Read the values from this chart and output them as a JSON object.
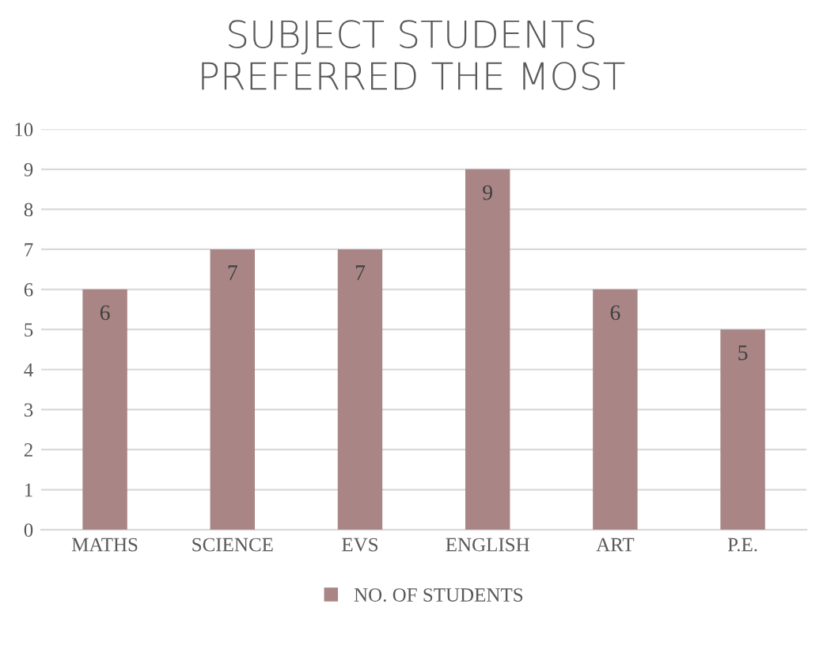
{
  "chart_data": {
    "type": "bar",
    "title": "SUBJECT STUDENTS\nPREFERRED THE MOST",
    "categories": [
      "MATHS",
      "SCIENCE",
      "EVS",
      "ENGLISH",
      "ART",
      "P.E."
    ],
    "series": [
      {
        "name": "NO. OF STUDENTS",
        "color": "#a98585",
        "values": [
          6,
          7,
          7,
          9,
          6,
          5
        ]
      }
    ],
    "ylim": [
      0,
      10
    ],
    "yticks": [
      0,
      1,
      2,
      3,
      4,
      5,
      6,
      7,
      8,
      9,
      10
    ],
    "grid": "y",
    "legend": "bottom",
    "data_labels": true
  }
}
